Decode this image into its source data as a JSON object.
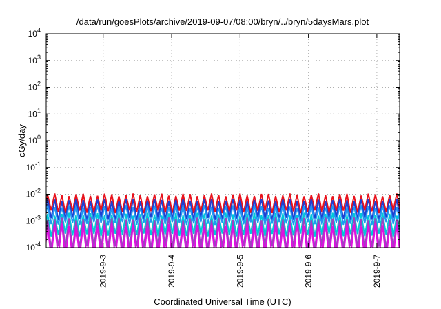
{
  "chart_data": {
    "type": "line",
    "title": "/data/run/goesPlots/archive/2019-09-07/08:00/bryn/../bryn/5daysMars.plot",
    "xlabel": "Coordinated Universal Time (UTC)",
    "ylabel": "cGy/day",
    "y_scale": "log",
    "ylim": [
      0.0001,
      10000
    ],
    "y_ticks": [
      {
        "value": 0.0001,
        "base": "10",
        "exp": "-4"
      },
      {
        "value": 0.001,
        "base": "10",
        "exp": "-3"
      },
      {
        "value": 0.01,
        "base": "10",
        "exp": "-2"
      },
      {
        "value": 0.1,
        "base": "10",
        "exp": "-1"
      },
      {
        "value": 1,
        "base": "10",
        "exp": "0"
      },
      {
        "value": 10,
        "base": "10",
        "exp": "1"
      },
      {
        "value": 100,
        "base": "10",
        "exp": "2"
      },
      {
        "value": 1000,
        "base": "10",
        "exp": "3"
      },
      {
        "value": 10000,
        "base": "10",
        "exp": "4"
      }
    ],
    "xlim": [
      "2019-09-02 04:00",
      "2019-09-07 08:00"
    ],
    "x_ticks": [
      {
        "value": "2019-09-03",
        "label": "2019-9-3"
      },
      {
        "value": "2019-09-04",
        "label": "2019-9-4"
      },
      {
        "value": "2019-09-05",
        "label": "2019-9-5"
      },
      {
        "value": "2019-09-06",
        "label": "2019-9-6"
      },
      {
        "value": "2019-09-07",
        "label": "2019-9-7"
      }
    ],
    "grid": true,
    "sawtooth_period_hours": 2.5,
    "series": [
      {
        "color": "#e8121c",
        "peak": 0.0095,
        "trough": 0.0022
      },
      {
        "color": "#1f3fd1",
        "peak": 0.006,
        "trough": 0.0012
      },
      {
        "color": "#2196f3",
        "peak": 0.0035,
        "trough": 0.0008
      },
      {
        "color": "#00c8d8",
        "peak": 0.0018,
        "trough": 0.0003
      },
      {
        "color": "#a040c0",
        "peak": 0.0012,
        "trough": 0.0001
      },
      {
        "color": "#e010e0",
        "peak": 0.0007,
        "trough": 4e-05
      }
    ]
  }
}
